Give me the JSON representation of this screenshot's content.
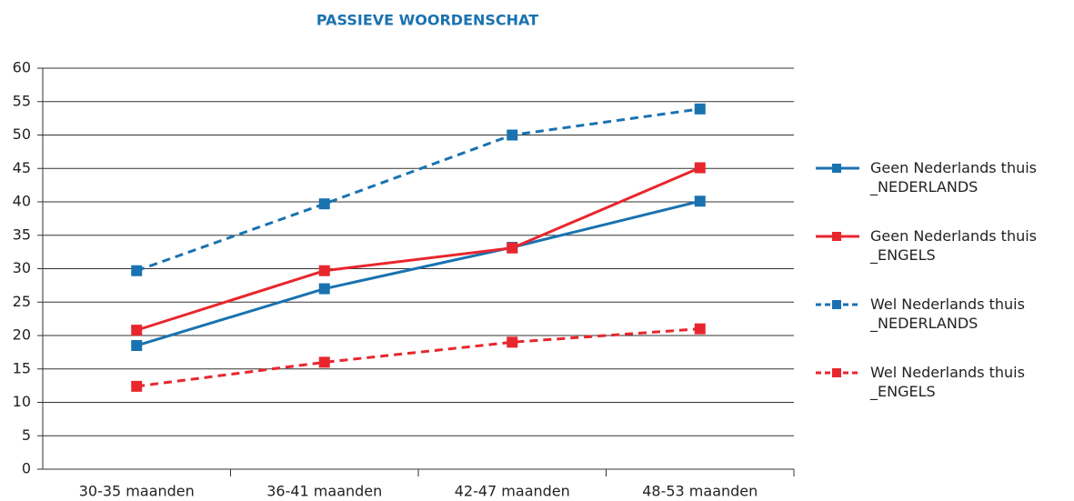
{
  "chart_data": {
    "type": "line",
    "title": "PASSIEVE WOORDENSCHAT",
    "categories": [
      "30-35 maanden",
      "36-41 maanden",
      "42-47 maanden",
      "48-53 maanden"
    ],
    "series": [
      {
        "name": "Geen Nederlands thuis _NEDERLANDS",
        "color": "#1a72b0",
        "linestyle": "solid",
        "values": [
          18.5,
          27,
          33.2,
          40.1
        ]
      },
      {
        "name": "Geen Nederlands thuis _ENGELS",
        "color": "#e8262d",
        "linestyle": "solid",
        "values": [
          20.8,
          29.7,
          33.1,
          45.1
        ]
      },
      {
        "name": "Wel Nederlands thuis _NEDERLANDS",
        "color": "#1a72b0",
        "linestyle": "dashed",
        "values": [
          29.7,
          39.7,
          50,
          53.9
        ]
      },
      {
        "name": "Wel Nederlands thuis _ENGELS",
        "color": "#e8262d",
        "linestyle": "dashed",
        "values": [
          12.4,
          16,
          19,
          21
        ]
      }
    ],
    "ylim": [
      0,
      60
    ],
    "yticks": [
      0,
      5,
      10,
      15,
      20,
      25,
      30,
      35,
      40,
      45,
      50,
      55,
      60
    ],
    "grid": true,
    "legend": "right"
  }
}
